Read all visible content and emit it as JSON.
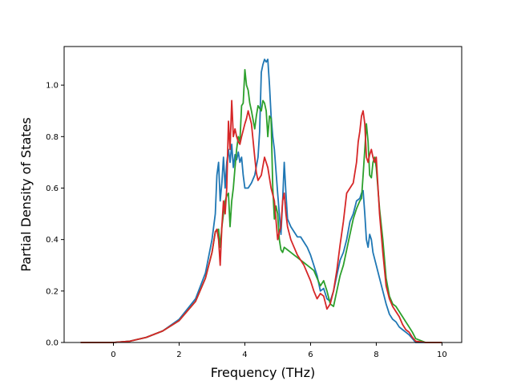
{
  "chart_data": {
    "type": "line",
    "title": "",
    "xlabel": "Frequency (THz)",
    "ylabel": "Partial Density of States",
    "xlim": [
      -1.5,
      10.6
    ],
    "ylim": [
      0,
      1.15
    ],
    "xticks": [
      0,
      2,
      4,
      6,
      8,
      10
    ],
    "yticks": [
      0.0,
      0.2,
      0.4,
      0.6,
      0.8,
      1.0
    ],
    "xtick_labels": [
      "0",
      "2",
      "4",
      "6",
      "8",
      "10"
    ],
    "ytick_labels": [
      "0.0",
      "0.2",
      "0.4",
      "0.6",
      "0.8",
      "1.0"
    ],
    "grid": false,
    "series": [
      {
        "color": "#1f77b4",
        "x": [
          -1.0,
          0.0,
          0.5,
          1.0,
          1.5,
          2.0,
          2.5,
          2.8,
          3.0,
          3.1,
          3.15,
          3.2,
          3.25,
          3.3,
          3.35,
          3.4,
          3.45,
          3.5,
          3.55,
          3.6,
          3.65,
          3.7,
          3.75,
          3.8,
          3.85,
          3.9,
          3.95,
          4.0,
          4.1,
          4.2,
          4.3,
          4.4,
          4.45,
          4.5,
          4.55,
          4.6,
          4.65,
          4.7,
          4.75,
          4.8,
          4.85,
          4.9,
          5.0,
          5.1,
          5.15,
          5.2,
          5.25,
          5.3,
          5.4,
          5.5,
          5.6,
          5.7,
          5.8,
          5.9,
          6.0,
          6.1,
          6.2,
          6.3,
          6.4,
          6.5,
          6.6,
          6.7,
          6.8,
          6.9,
          7.0,
          7.1,
          7.2,
          7.3,
          7.4,
          7.5,
          7.55,
          7.6,
          7.65,
          7.7,
          7.75,
          7.8,
          7.85,
          7.9,
          8.0,
          8.1,
          8.2,
          8.3,
          8.4,
          8.5,
          8.6,
          8.7,
          8.8,
          8.9,
          9.0,
          9.1,
          9.2,
          9.5,
          10.0
        ],
        "y": [
          0.0,
          0.0,
          0.005,
          0.02,
          0.045,
          0.09,
          0.17,
          0.27,
          0.4,
          0.5,
          0.65,
          0.7,
          0.55,
          0.62,
          0.72,
          0.6,
          0.7,
          0.75,
          0.7,
          0.77,
          0.68,
          0.73,
          0.71,
          0.74,
          0.7,
          0.72,
          0.65,
          0.6,
          0.6,
          0.62,
          0.65,
          0.72,
          0.82,
          1.05,
          1.08,
          1.1,
          1.09,
          1.1,
          1.0,
          0.88,
          0.8,
          0.75,
          0.58,
          0.42,
          0.55,
          0.7,
          0.58,
          0.48,
          0.45,
          0.43,
          0.41,
          0.41,
          0.39,
          0.37,
          0.34,
          0.3,
          0.26,
          0.2,
          0.21,
          0.17,
          0.16,
          0.2,
          0.26,
          0.32,
          0.35,
          0.4,
          0.47,
          0.5,
          0.55,
          0.56,
          0.58,
          0.59,
          0.5,
          0.4,
          0.37,
          0.42,
          0.4,
          0.35,
          0.3,
          0.25,
          0.2,
          0.15,
          0.11,
          0.09,
          0.08,
          0.06,
          0.05,
          0.04,
          0.03,
          0.015,
          0.0,
          0.0,
          0.0
        ]
      },
      {
        "color": "#2ca02c",
        "x": [
          -1.0,
          0.0,
          0.5,
          1.0,
          1.5,
          2.0,
          2.5,
          2.8,
          3.0,
          3.1,
          3.2,
          3.25,
          3.3,
          3.35,
          3.4,
          3.45,
          3.5,
          3.55,
          3.6,
          3.65,
          3.7,
          3.75,
          3.8,
          3.85,
          3.9,
          3.95,
          4.0,
          4.05,
          4.1,
          4.15,
          4.2,
          4.3,
          4.35,
          4.4,
          4.45,
          4.5,
          4.55,
          4.6,
          4.65,
          4.7,
          4.75,
          4.8,
          4.85,
          4.9,
          4.95,
          5.0,
          5.05,
          5.1,
          5.15,
          5.2,
          5.3,
          5.4,
          5.5,
          5.6,
          5.7,
          5.8,
          5.9,
          6.0,
          6.1,
          6.2,
          6.3,
          6.4,
          6.5,
          6.6,
          6.7,
          6.8,
          6.9,
          7.0,
          7.1,
          7.2,
          7.3,
          7.4,
          7.5,
          7.55,
          7.6,
          7.65,
          7.7,
          7.75,
          7.8,
          7.85,
          7.9,
          7.95,
          8.0,
          8.1,
          8.2,
          8.3,
          8.4,
          8.5,
          8.6,
          8.7,
          8.8,
          8.9,
          9.0,
          9.1,
          9.2,
          9.5,
          10.0
        ],
        "y": [
          0.0,
          0.0,
          0.005,
          0.02,
          0.045,
          0.085,
          0.16,
          0.25,
          0.35,
          0.43,
          0.44,
          0.37,
          0.45,
          0.5,
          0.55,
          0.57,
          0.58,
          0.45,
          0.55,
          0.6,
          0.68,
          0.75,
          0.8,
          0.78,
          0.92,
          0.93,
          1.06,
          1.0,
          0.98,
          0.93,
          0.9,
          0.83,
          0.88,
          0.92,
          0.91,
          0.9,
          0.94,
          0.93,
          0.9,
          0.8,
          0.88,
          0.87,
          0.6,
          0.48,
          0.53,
          0.5,
          0.4,
          0.36,
          0.35,
          0.37,
          0.36,
          0.35,
          0.34,
          0.33,
          0.32,
          0.31,
          0.3,
          0.29,
          0.28,
          0.25,
          0.22,
          0.24,
          0.2,
          0.15,
          0.14,
          0.2,
          0.26,
          0.3,
          0.36,
          0.42,
          0.48,
          0.52,
          0.55,
          0.56,
          0.65,
          0.75,
          0.85,
          0.78,
          0.65,
          0.64,
          0.7,
          0.72,
          0.68,
          0.52,
          0.4,
          0.25,
          0.18,
          0.15,
          0.14,
          0.12,
          0.1,
          0.08,
          0.06,
          0.04,
          0.015,
          0.0,
          0.0
        ]
      },
      {
        "color": "#d62728",
        "x": [
          -1.0,
          0.0,
          0.5,
          1.0,
          1.5,
          2.0,
          2.5,
          2.8,
          3.0,
          3.1,
          3.15,
          3.2,
          3.25,
          3.3,
          3.35,
          3.4,
          3.45,
          3.5,
          3.55,
          3.6,
          3.65,
          3.7,
          3.75,
          3.8,
          3.85,
          3.9,
          4.0,
          4.05,
          4.1,
          4.2,
          4.3,
          4.35,
          4.4,
          4.5,
          4.6,
          4.7,
          4.8,
          4.9,
          5.0,
          5.05,
          5.1,
          5.15,
          5.2,
          5.25,
          5.3,
          5.4,
          5.5,
          5.6,
          5.7,
          5.8,
          5.9,
          6.0,
          6.1,
          6.2,
          6.3,
          6.4,
          6.5,
          6.6,
          6.7,
          6.8,
          6.9,
          7.0,
          7.1,
          7.2,
          7.3,
          7.4,
          7.45,
          7.5,
          7.55,
          7.6,
          7.65,
          7.7,
          7.75,
          7.8,
          7.85,
          7.9,
          7.95,
          8.0,
          8.1,
          8.2,
          8.3,
          8.4,
          8.5,
          8.6,
          8.7,
          8.8,
          8.9,
          9.0,
          9.1,
          9.2,
          9.5,
          10.0
        ],
        "y": [
          0.0,
          0.0,
          0.005,
          0.02,
          0.045,
          0.085,
          0.16,
          0.25,
          0.35,
          0.43,
          0.44,
          0.4,
          0.3,
          0.45,
          0.55,
          0.5,
          0.6,
          0.86,
          0.75,
          0.94,
          0.8,
          0.83,
          0.8,
          0.78,
          0.77,
          0.8,
          0.85,
          0.87,
          0.9,
          0.85,
          0.72,
          0.66,
          0.63,
          0.65,
          0.72,
          0.68,
          0.6,
          0.55,
          0.4,
          0.43,
          0.45,
          0.55,
          0.58,
          0.5,
          0.45,
          0.4,
          0.37,
          0.34,
          0.32,
          0.3,
          0.27,
          0.24,
          0.2,
          0.17,
          0.19,
          0.18,
          0.13,
          0.15,
          0.2,
          0.28,
          0.38,
          0.47,
          0.58,
          0.6,
          0.62,
          0.7,
          0.78,
          0.82,
          0.88,
          0.9,
          0.85,
          0.72,
          0.7,
          0.73,
          0.75,
          0.72,
          0.7,
          0.72,
          0.5,
          0.35,
          0.22,
          0.17,
          0.14,
          0.12,
          0.1,
          0.07,
          0.05,
          0.04,
          0.02,
          0.005,
          0.0,
          0.0
        ]
      }
    ]
  }
}
